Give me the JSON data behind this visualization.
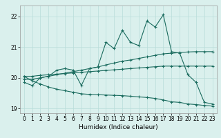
{
  "xlabel": "Humidex (Indice chaleur)",
  "xlim": [
    -0.5,
    23.5
  ],
  "ylim": [
    18.85,
    22.35
  ],
  "yticks": [
    19,
    20,
    21,
    22
  ],
  "xticks": [
    0,
    1,
    2,
    3,
    4,
    5,
    6,
    7,
    8,
    9,
    10,
    11,
    12,
    13,
    14,
    15,
    16,
    17,
    18,
    19,
    20,
    21,
    22,
    23
  ],
  "bg_color": "#daf0ed",
  "grid_color": "#b8ddd9",
  "line_color": "#1a6b5e",
  "line1_y": [
    19.85,
    19.75,
    20.0,
    20.05,
    20.25,
    20.3,
    20.25,
    19.75,
    20.3,
    20.35,
    21.15,
    20.95,
    21.55,
    21.15,
    21.05,
    21.85,
    21.65,
    22.05,
    20.85,
    20.8,
    20.1,
    19.85,
    19.2,
    19.15
  ],
  "line2_y": [
    19.95,
    19.95,
    20.0,
    20.05,
    20.1,
    20.15,
    20.2,
    20.25,
    20.3,
    20.35,
    20.42,
    20.48,
    20.54,
    20.58,
    20.63,
    20.68,
    20.73,
    20.78,
    20.8,
    20.82,
    20.84,
    20.85,
    20.85,
    20.85
  ],
  "line3_y": [
    20.05,
    20.05,
    20.08,
    20.1,
    20.12,
    20.14,
    20.16,
    20.18,
    20.2,
    20.22,
    20.24,
    20.26,
    20.28,
    20.3,
    20.32,
    20.34,
    20.36,
    20.38,
    20.38,
    20.38,
    20.38,
    20.38,
    20.38,
    20.38
  ],
  "line4_y": [
    20.05,
    19.9,
    19.8,
    19.7,
    19.63,
    19.58,
    19.53,
    19.48,
    19.46,
    19.45,
    19.44,
    19.43,
    19.42,
    19.4,
    19.38,
    19.36,
    19.33,
    19.28,
    19.22,
    19.2,
    19.15,
    19.13,
    19.1,
    19.08
  ]
}
